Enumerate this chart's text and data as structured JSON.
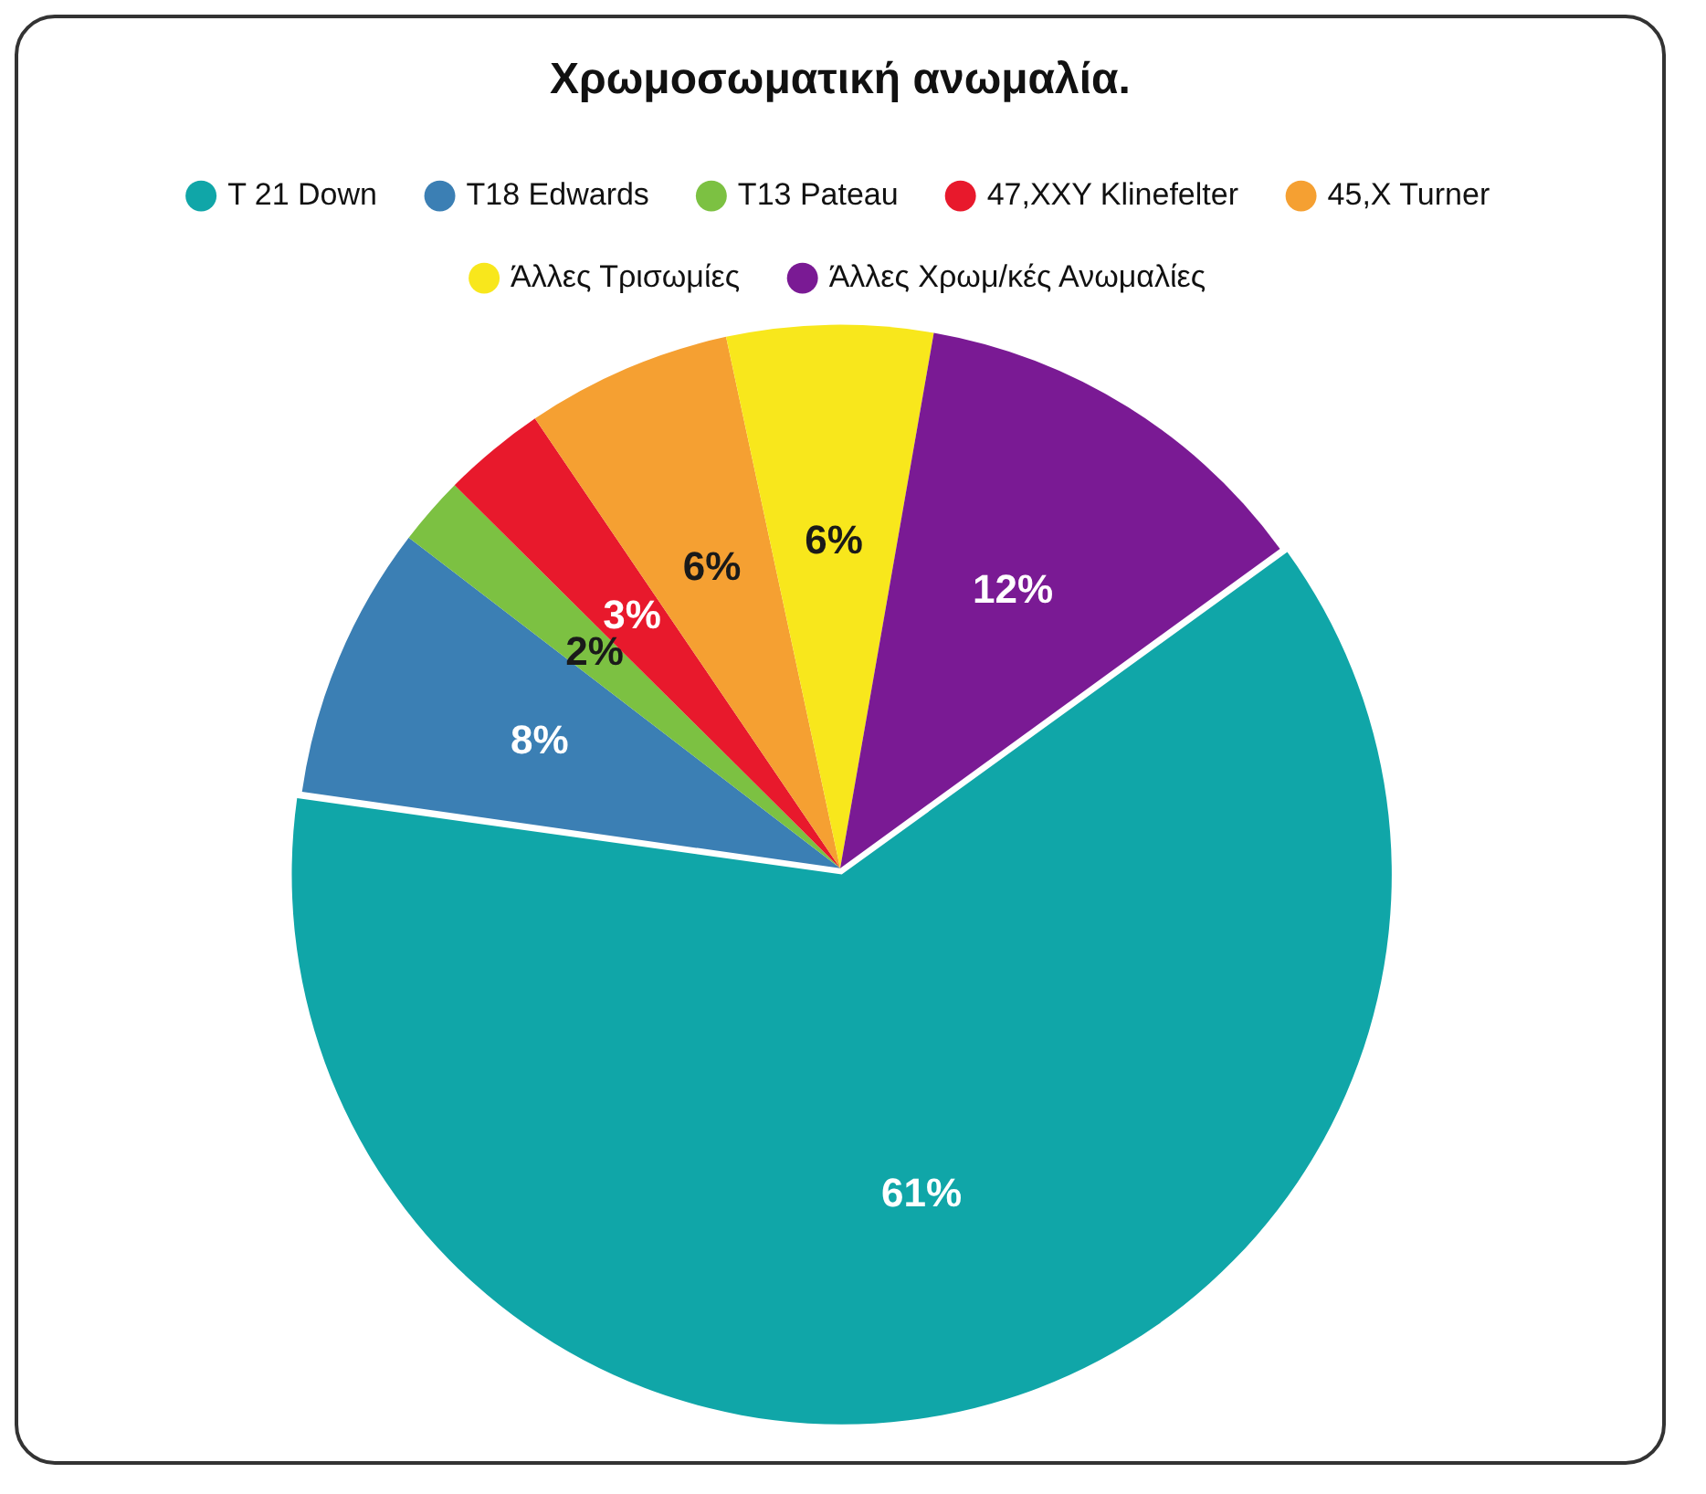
{
  "chart_data": {
    "type": "pie",
    "title": "Χρωμοσωματική ανωμαλία.",
    "categories": [
      "T 21 Down",
      "T18 Edwards",
      "T13 Pateau",
      "47,XXY Klinefelter",
      "45,X Turner",
      "Άλλες Τρισωμίες",
      "Άλλες Χρωμ/κές Ανωμαλίες"
    ],
    "values": [
      61,
      8,
      2,
      3,
      6,
      6,
      12
    ],
    "value_labels": [
      "61%",
      "8%",
      "2%",
      "3%",
      "6%",
      "6%",
      "12%"
    ],
    "colors": [
      "#10a6a8",
      "#3b7fb4",
      "#7cc142",
      "#e8192c",
      "#f5a032",
      "#f8e71c",
      "#7a1a94"
    ],
    "legend": "top"
  }
}
